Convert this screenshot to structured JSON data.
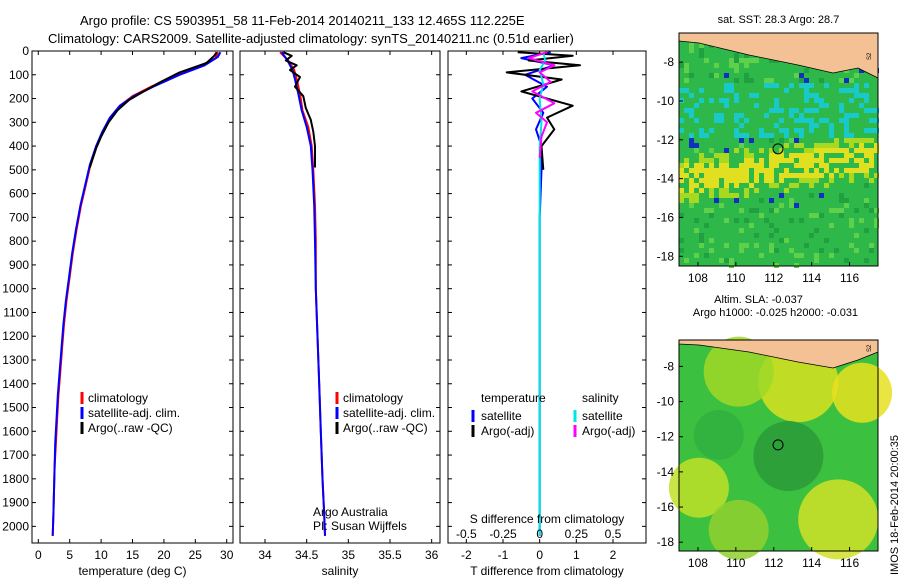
{
  "header": {
    "line1": "Argo profile: CS 5903951_58 11-Feb-2014 20140211_133 12.465S 112.225E",
    "line2": "Climatology: CARS2009. Satellite-adjusted climatology: synTS_20140211.nc (0.51d earlier)"
  },
  "depth_axis": {
    "ticks": [
      0,
      100,
      200,
      300,
      400,
      500,
      600,
      700,
      800,
      900,
      1000,
      1100,
      1200,
      1300,
      1400,
      1500,
      1600,
      1700,
      1800,
      1900,
      2000
    ],
    "ylim": [
      0,
      2070
    ]
  },
  "colors": {
    "climatology": "#ff0000",
    "satellite": "#0000ff",
    "argo": "#000000",
    "argo_sal": "#ff00ff",
    "sat_sal": "#00e5e5"
  },
  "chart_data": [
    {
      "type": "line",
      "xlabel": "temperature (deg C)",
      "xlim": [
        -1,
        31
      ],
      "xticks": [
        0,
        5,
        10,
        15,
        20,
        25,
        30
      ],
      "legend": [
        "climatology",
        "satellite-adj. clim.",
        "Argo(..raw -QC)"
      ],
      "series": [
        {
          "name": "climatology",
          "color": "#ff0000",
          "points": [
            [
              28.6,
              5
            ],
            [
              28.2,
              30
            ],
            [
              26,
              60
            ],
            [
              22,
              100
            ],
            [
              18,
              150
            ],
            [
              15,
              190
            ],
            [
              13,
              230
            ],
            [
              11.5,
              280
            ],
            [
              10.3,
              340
            ],
            [
              9.3,
              400
            ],
            [
              8.3,
              480
            ],
            [
              7.6,
              560
            ],
            [
              6.8,
              650
            ],
            [
              6.1,
              750
            ],
            [
              5.5,
              850
            ],
            [
              5,
              950
            ],
            [
              4.5,
              1050
            ],
            [
              4.1,
              1150
            ],
            [
              3.8,
              1250
            ],
            [
              3.5,
              1350
            ],
            [
              3.2,
              1450
            ],
            [
              3,
              1550
            ],
            [
              2.8,
              1650
            ],
            [
              2.6,
              1750
            ],
            [
              2.5,
              1850
            ],
            [
              2.4,
              1950
            ],
            [
              2.3,
              2040
            ]
          ]
        },
        {
          "name": "satellite-adj. clim.",
          "color": "#0000ff",
          "points": [
            [
              29,
              5
            ],
            [
              28.6,
              25
            ],
            [
              26.5,
              60
            ],
            [
              22.5,
              100
            ],
            [
              18.3,
              150
            ],
            [
              15.2,
              190
            ],
            [
              13,
              230
            ],
            [
              11.4,
              280
            ],
            [
              10.2,
              340
            ],
            [
              9.2,
              400
            ],
            [
              8.2,
              480
            ],
            [
              7.5,
              560
            ],
            [
              6.7,
              650
            ],
            [
              6,
              750
            ],
            [
              5.4,
              850
            ],
            [
              4.9,
              950
            ],
            [
              4.4,
              1050
            ],
            [
              4,
              1150
            ],
            [
              3.7,
              1250
            ],
            [
              3.4,
              1350
            ],
            [
              3.1,
              1450
            ],
            [
              2.9,
              1550
            ],
            [
              2.7,
              1650
            ],
            [
              2.6,
              1750
            ],
            [
              2.5,
              1850
            ],
            [
              2.4,
              1950
            ],
            [
              2.3,
              2040
            ]
          ]
        },
        {
          "name": "Argo(..raw -QC)",
          "color": "#000000",
          "points": [
            [
              28.4,
              5
            ],
            [
              28,
              20
            ],
            [
              26.8,
              50
            ],
            [
              22.5,
              90
            ],
            [
              19.5,
              130
            ],
            [
              16.8,
              170
            ],
            [
              14.5,
              205
            ],
            [
              12.6,
              250
            ],
            [
              11.2,
              300
            ],
            [
              10,
              360
            ],
            [
              9.2,
              410
            ],
            [
              8.2,
              490
            ]
          ]
        }
      ]
    },
    {
      "type": "line",
      "xlabel": "salinity",
      "xlim": [
        33.7,
        36.1
      ],
      "xticks": [
        34,
        34.5,
        35,
        35.5,
        36
      ],
      "legend": [
        "climatology",
        "satellite-adj. clim.",
        "Argo(..raw -QC)"
      ],
      "annotation": [
        "Argo Australia",
        "PI: Susan Wijffels"
      ],
      "series": [
        {
          "name": "climatology",
          "color": "#ff0000",
          "points": [
            [
              34.18,
              5
            ],
            [
              34.28,
              40
            ],
            [
              34.35,
              80
            ],
            [
              34.38,
              120
            ],
            [
              34.42,
              180
            ],
            [
              34.45,
              250
            ],
            [
              34.52,
              320
            ],
            [
              34.56,
              400
            ],
            [
              34.58,
              500
            ],
            [
              34.6,
              650
            ],
            [
              34.61,
              800
            ],
            [
              34.61,
              1000
            ],
            [
              34.63,
              1200
            ],
            [
              34.65,
              1400
            ],
            [
              34.67,
              1600
            ],
            [
              34.69,
              1800
            ],
            [
              34.71,
              1950
            ],
            [
              34.72,
              2040
            ]
          ]
        },
        {
          "name": "satellite-adj. clim.",
          "color": "#0000ff",
          "points": [
            [
              34.2,
              5
            ],
            [
              34.27,
              40
            ],
            [
              34.33,
              80
            ],
            [
              34.36,
              120
            ],
            [
              34.4,
              180
            ],
            [
              34.44,
              250
            ],
            [
              34.5,
              320
            ],
            [
              34.55,
              400
            ],
            [
              34.57,
              500
            ],
            [
              34.59,
              650
            ],
            [
              34.6,
              800
            ],
            [
              34.61,
              1000
            ],
            [
              34.63,
              1200
            ],
            [
              34.65,
              1400
            ],
            [
              34.67,
              1600
            ],
            [
              34.69,
              1800
            ],
            [
              34.71,
              1950
            ],
            [
              34.72,
              2040
            ]
          ]
        },
        {
          "name": "Argo(..raw -QC)",
          "color": "#000000",
          "points": [
            [
              34.22,
              5
            ],
            [
              34.32,
              20
            ],
            [
              34.25,
              40
            ],
            [
              34.38,
              60
            ],
            [
              34.3,
              80
            ],
            [
              34.42,
              110
            ],
            [
              34.36,
              150
            ],
            [
              34.46,
              190
            ],
            [
              34.49,
              240
            ],
            [
              34.55,
              290
            ],
            [
              34.58,
              340
            ],
            [
              34.6,
              400
            ],
            [
              34.6,
              460
            ],
            [
              34.6,
              490
            ]
          ]
        }
      ]
    },
    {
      "type": "line",
      "xlabel": "T difference from climatology",
      "top_label": "S difference from climatology",
      "xlim": [
        -2.5,
        2.9
      ],
      "xticks": [
        -2,
        -1,
        0,
        1,
        2
      ],
      "top_ticks": [
        "-0.5",
        "-0.25",
        "0",
        "0.25",
        "0.5"
      ],
      "legend_left_title": "temperature",
      "legend_right_title": "salinity",
      "legend_left": [
        "satellite",
        "Argo(-adj)"
      ],
      "legend_right": [
        "satellite",
        "Argo(-adj)"
      ],
      "series": [
        {
          "name": "temperature satellite",
          "color": "#0000ff",
          "points": [
            [
              0.3,
              5
            ],
            [
              -0.5,
              30
            ],
            [
              0.4,
              60
            ],
            [
              -0.4,
              100
            ],
            [
              0.2,
              150
            ],
            [
              -0.2,
              200
            ],
            [
              0.1,
              260
            ],
            [
              -0.1,
              330
            ],
            [
              0.05,
              400
            ],
            [
              0.05,
              500
            ],
            [
              0,
              700
            ],
            [
              0,
              1000
            ],
            [
              0,
              1400
            ],
            [
              0,
              1800
            ],
            [
              0,
              2040
            ]
          ]
        },
        {
          "name": "temperature Argo(-adj)",
          "color": "#000000",
          "points": [
            [
              -0.6,
              5
            ],
            [
              0.9,
              20
            ],
            [
              -0.3,
              40
            ],
            [
              1.1,
              60
            ],
            [
              -0.9,
              90
            ],
            [
              0.6,
              120
            ],
            [
              -0.5,
              170
            ],
            [
              0.9,
              230
            ],
            [
              0.2,
              280
            ],
            [
              0.4,
              330
            ],
            [
              0.05,
              400
            ],
            [
              0.1,
              500
            ]
          ]
        },
        {
          "name": "salinity satellite",
          "color": "#00e5e5",
          "points": [
            [
              0.1,
              5
            ],
            [
              0.15,
              40
            ],
            [
              0,
              80
            ],
            [
              0.1,
              140
            ],
            [
              0,
              200
            ],
            [
              0.05,
              300
            ],
            [
              0,
              400
            ],
            [
              0,
              600
            ],
            [
              0,
              900
            ],
            [
              0,
              1300
            ],
            [
              0,
              1700
            ],
            [
              0,
              2040
            ]
          ]
        },
        {
          "name": "salinity Argo(-adj)",
          "color": "#ff00ff",
          "points": [
            [
              0.2,
              5
            ],
            [
              -0.3,
              30
            ],
            [
              0.4,
              60
            ],
            [
              0,
              90
            ],
            [
              0.3,
              130
            ],
            [
              -0.2,
              170
            ],
            [
              0.4,
              220
            ],
            [
              -0.1,
              260
            ],
            [
              0.2,
              300
            ],
            [
              0.05,
              360
            ],
            [
              0,
              450
            ]
          ]
        }
      ]
    }
  ],
  "maps": {
    "top_title": "sat. SST: 28.3 Argo: 28.7",
    "bottom_title1": "Altim. SLA: -0.037",
    "bottom_title2": "Argo h1000: -0.025 h2000: -0.031",
    "xticks": [
      108,
      110,
      112,
      114,
      116
    ],
    "yticks": [
      -8,
      -10,
      -12,
      -14,
      -16,
      -18
    ],
    "lon_range": [
      107,
      117.5
    ],
    "lat_range": [
      -6.5,
      -18.5
    ],
    "argo_location": [
      112.225,
      -12.465
    ],
    "land_label": "S2"
  },
  "side_stamp": "IMOS 18-Feb-2014 20:00:35"
}
